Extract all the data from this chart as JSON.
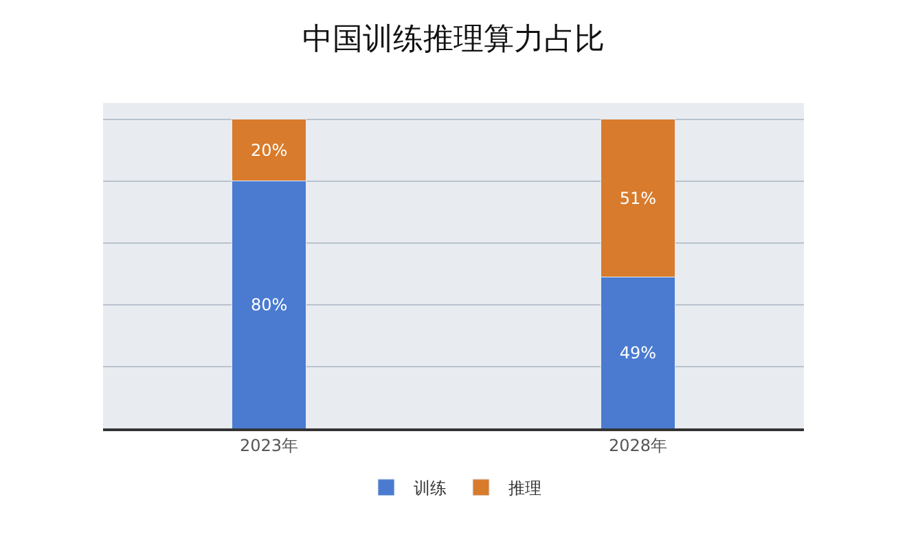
{
  "chart_data": {
    "type": "bar",
    "title": "中国训练推理算力占比",
    "categories": [
      "2023年",
      "2028年"
    ],
    "stacked": true,
    "series": [
      {
        "name": "训练",
        "color": "#4a7bd0",
        "values": [
          80,
          49
        ],
        "value_labels": [
          "80%",
          "49%"
        ]
      },
      {
        "name": "推理",
        "color": "#d87b2c",
        "values": [
          20,
          51
        ],
        "value_labels": [
          "20%",
          "51%"
        ]
      }
    ],
    "tick_labels": "x",
    "grid": "y",
    "legend": "bottom"
  }
}
